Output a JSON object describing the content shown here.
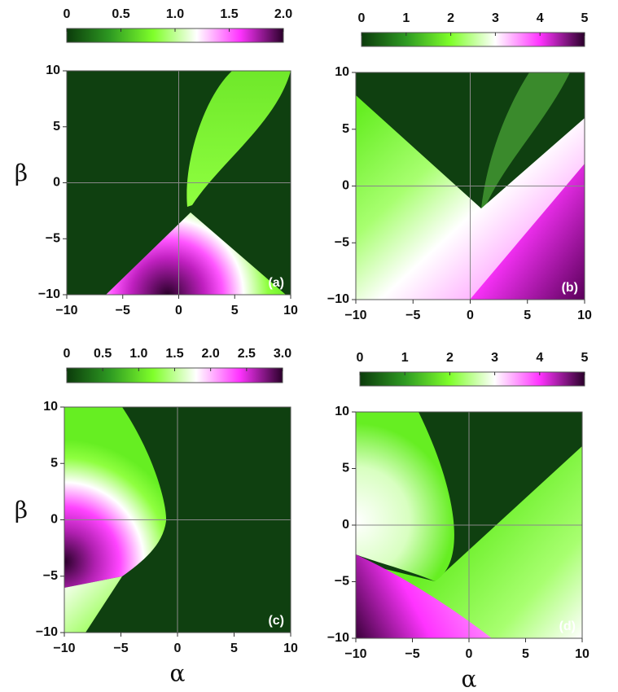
{
  "chart_data": [
    {
      "type": "heatmap",
      "label": "(a)",
      "ylabel": "β",
      "xlim": [
        -10,
        10
      ],
      "ylim": [
        -10,
        10
      ],
      "xticks": [
        {
          "value": -10,
          "label": "−10"
        },
        {
          "value": -5,
          "label": "−5"
        },
        0,
        5,
        10
      ],
      "yticks": [
        {
          "value": -10,
          "label": "−10"
        },
        {
          "value": -5,
          "label": "−5"
        },
        0,
        5,
        10
      ],
      "zlim": [
        0,
        2
      ],
      "zticks": [
        0,
        0.5,
        {
          "value": 1,
          "label": "1.0"
        },
        1.5,
        {
          "value": 2,
          "label": "2.0"
        }
      ],
      "colors": [
        "#0b3b0b",
        "#2e9a22",
        "#7fff2a",
        "#ffffff",
        "#ff33ff",
        "#2a002a"
      ]
    },
    {
      "type": "heatmap",
      "label": "(b)",
      "xlim": [
        -10,
        10
      ],
      "ylim": [
        -10,
        10
      ],
      "xticks": [
        {
          "value": -10,
          "label": "−10"
        },
        {
          "value": -5,
          "label": "−5"
        },
        0,
        5,
        10
      ],
      "yticks": [
        {
          "value": -10,
          "label": "−10"
        },
        {
          "value": -5,
          "label": "−5"
        },
        0,
        5,
        10
      ],
      "zlim": [
        0,
        5
      ],
      "zticks": [
        0,
        1,
        2,
        3,
        4,
        5
      ],
      "colors": [
        "#0b3b0b",
        "#2e9a22",
        "#7fff2a",
        "#ffffff",
        "#ff33ff",
        "#2a002a"
      ]
    },
    {
      "type": "heatmap",
      "label": "(c)",
      "xlabel": "α",
      "ylabel": "β",
      "xlim": [
        -10,
        10
      ],
      "ylim": [
        -10,
        10
      ],
      "xticks": [
        {
          "value": -10,
          "label": "−10"
        },
        {
          "value": -5,
          "label": "−5"
        },
        0,
        5,
        10
      ],
      "yticks": [
        {
          "value": -10,
          "label": "−10"
        },
        {
          "value": -5,
          "label": "−5"
        },
        0,
        5,
        10
      ],
      "zlim": [
        0,
        3
      ],
      "zticks": [
        0,
        0.5,
        {
          "value": 1,
          "label": "1.0"
        },
        1.5,
        {
          "value": 2,
          "label": "2.0"
        },
        2.5,
        {
          "value": 3,
          "label": "3.0"
        }
      ],
      "colors": [
        "#0b3b0b",
        "#2e9a22",
        "#7fff2a",
        "#ffffff",
        "#ff33ff",
        "#2a002a"
      ]
    },
    {
      "type": "heatmap",
      "label": "(d)",
      "xlabel": "α",
      "xlim": [
        -10,
        10
      ],
      "ylim": [
        -10,
        10
      ],
      "xticks": [
        {
          "value": -10,
          "label": "−10"
        },
        {
          "value": -5,
          "label": "−5"
        },
        0,
        5,
        10
      ],
      "yticks": [
        {
          "value": -10,
          "label": "−10"
        },
        {
          "value": -5,
          "label": "−5"
        },
        0,
        5,
        10
      ],
      "zlim": [
        0,
        5
      ],
      "zticks": [
        0,
        1,
        2,
        3,
        4,
        5
      ],
      "colors": [
        "#0b3b0b",
        "#2e9a22",
        "#7fff2a",
        "#ffffff",
        "#ff33ff",
        "#2a002a"
      ]
    }
  ]
}
